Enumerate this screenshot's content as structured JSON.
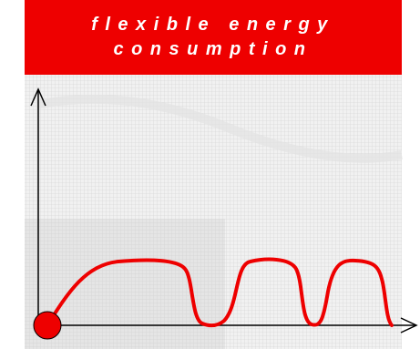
{
  "header": {
    "title": "flexible energy consumption"
  }
}
